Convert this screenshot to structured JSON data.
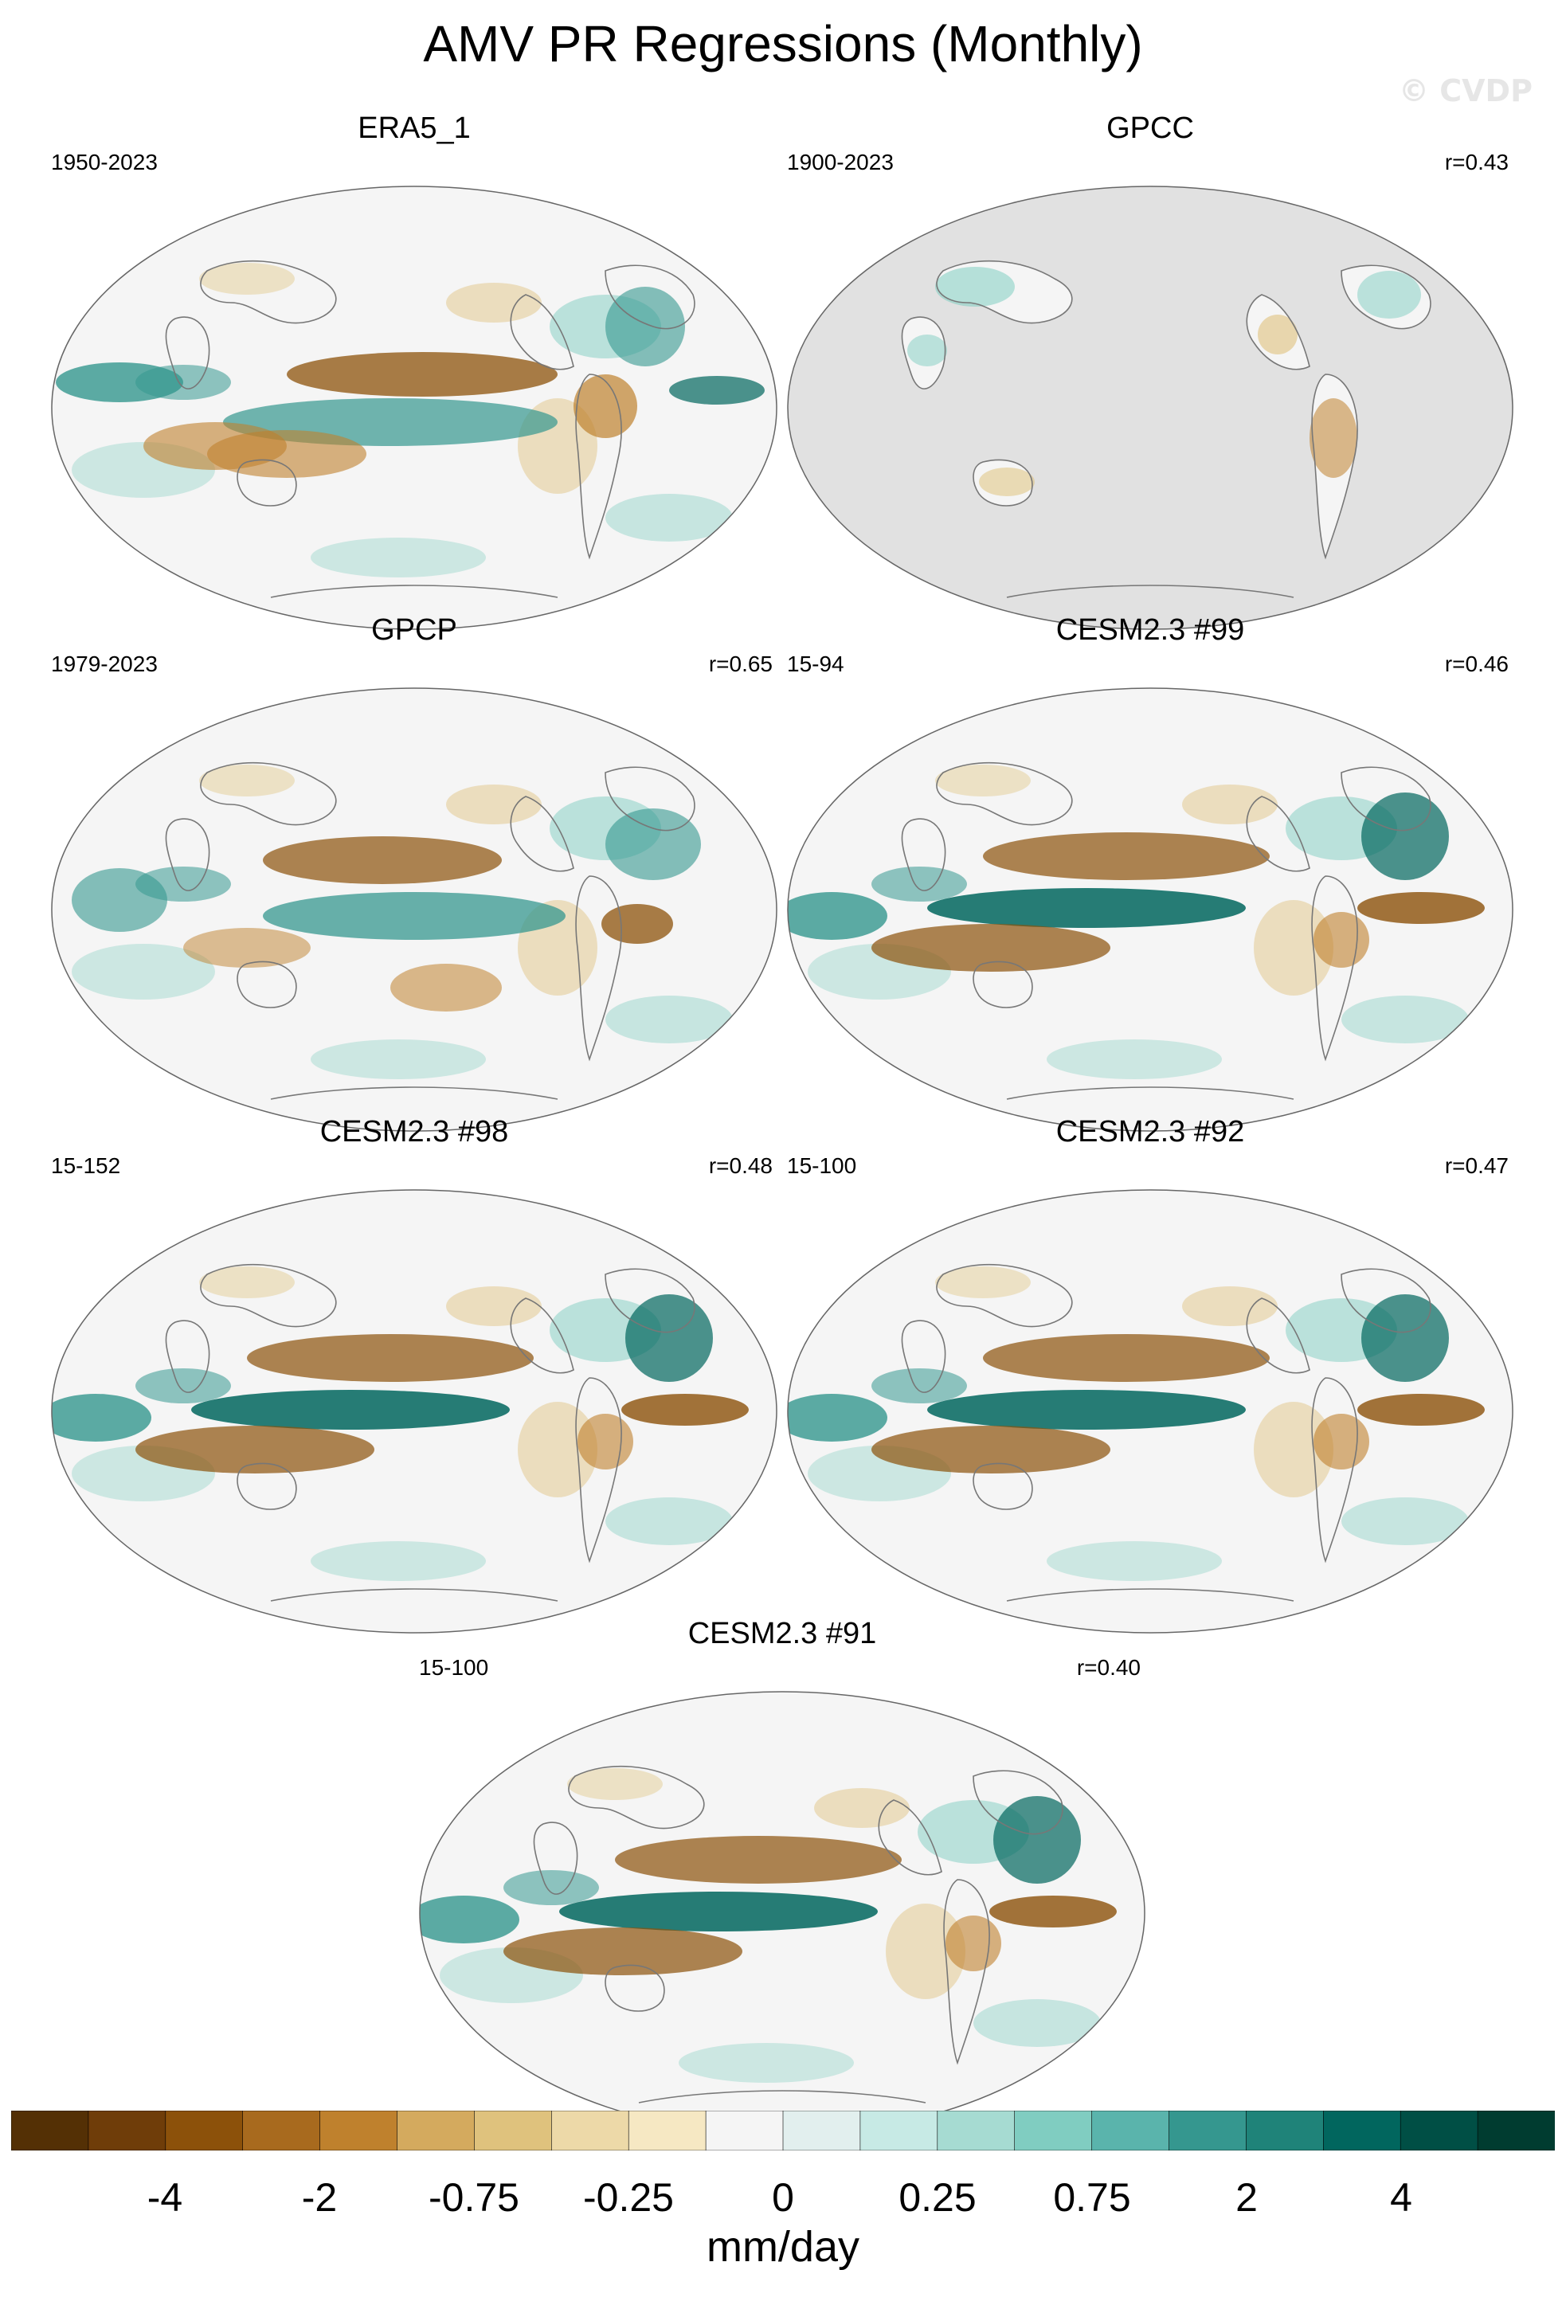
{
  "figure": {
    "title": "AMV PR Regressions (Monthly)",
    "watermark": "© CVDP"
  },
  "panels": [
    {
      "title": "ERA5_1",
      "years": "1950-2023",
      "corr": "",
      "style": "era5"
    },
    {
      "title": "GPCC",
      "years": "1900-2023",
      "corr": "r=0.43",
      "style": "land"
    },
    {
      "title": "GPCP",
      "years": "1979-2023",
      "corr": "r=0.65",
      "style": "gpcp"
    },
    {
      "title": "CESM2.3 #99",
      "years": "15-94",
      "corr": "r=0.46",
      "style": "model"
    },
    {
      "title": "CESM2.3 #98",
      "years": "15-152",
      "corr": "r=0.48",
      "style": "model"
    },
    {
      "title": "CESM2.3 #92",
      "years": "15-100",
      "corr": "r=0.47",
      "style": "model"
    },
    {
      "title": "CESM2.3 #91",
      "years": "15-100",
      "corr": "r=0.40",
      "style": "model"
    }
  ],
  "colorbar": {
    "label": "mm/day",
    "tick_labels": [
      "-4",
      "-2",
      "-0.75",
      "-0.25",
      "0",
      "0.25",
      "0.75",
      "2",
      "4"
    ],
    "colors": [
      "#543005",
      "#6f3d09",
      "#8c510a",
      "#a86a1e",
      "#bf812d",
      "#d4aa5e",
      "#dfc27d",
      "#edd9a8",
      "#f6e8c3",
      "#f5f5f5",
      "#e2efee",
      "#c7eae5",
      "#a6dbd2",
      "#80cdc1",
      "#5ab4ac",
      "#35978f",
      "#1f8379",
      "#01665e",
      "#004f45",
      "#003c30"
    ]
  },
  "colors": {
    "brown_strong": "#8c510a",
    "brown_mid": "#bf812d",
    "brown_light": "#dfc27d",
    "teal_light": "#80cdc1",
    "teal_mid": "#35978f",
    "teal_strong": "#01665e",
    "neutral": "#f5f5f5",
    "missing": "#e1e1e1"
  }
}
